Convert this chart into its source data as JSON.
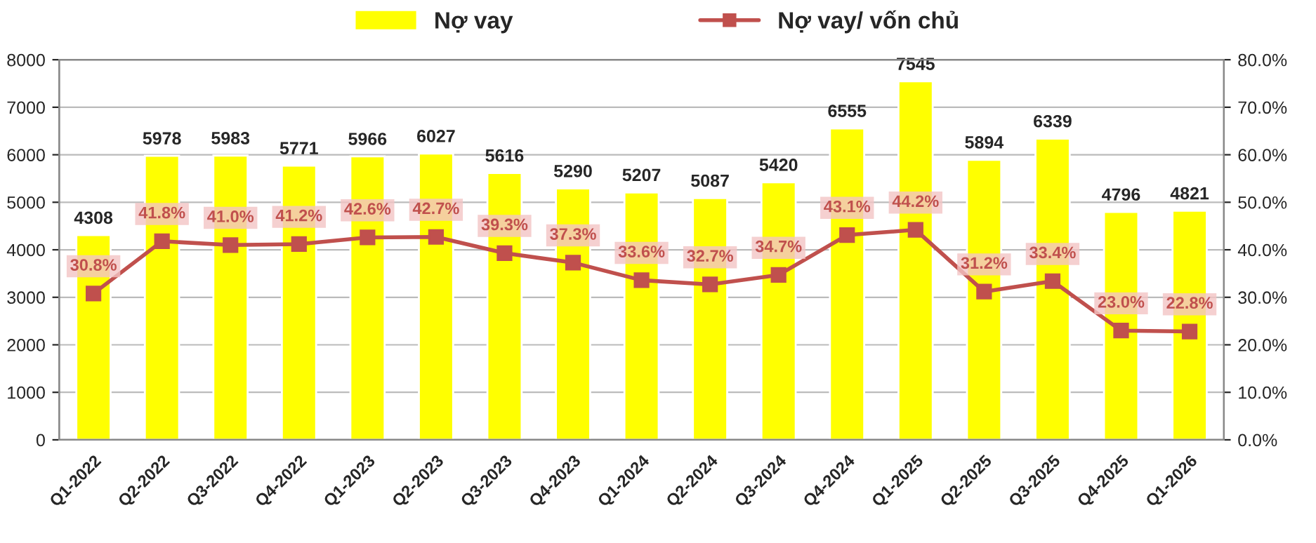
{
  "chart_data": {
    "type": "bar",
    "categories": [
      "Q1-2022",
      "Q2-2022",
      "Q3-2022",
      "Q4-2022",
      "Q1-2023",
      "Q2-2023",
      "Q3-2023",
      "Q4-2023",
      "Q1-2024",
      "Q2-2024",
      "Q3-2024",
      "Q4-2024",
      "Q1-2025",
      "Q2-2025",
      "Q3-2025",
      "Q4-2025",
      "Q1-2026"
    ],
    "series": [
      {
        "name": "Nợ vay",
        "color": "#ffff00",
        "values": [
          4308,
          5978,
          5983,
          5771,
          5966,
          6027,
          5616,
          5290,
          5207,
          5087,
          5420,
          6555,
          7545,
          5894,
          6339,
          4796,
          4821
        ],
        "value_labels": [
          "4308",
          "5978",
          "5983",
          "5771",
          "5966",
          "6027",
          "5616",
          "5290",
          "5207",
          "5087",
          "5420",
          "6555",
          "7545",
          "5894",
          "6339",
          "4796",
          "4821"
        ]
      },
      {
        "name": "Nợ vay/ vốn chủ",
        "type": "line",
        "axis": "y2",
        "color": "#c0504d",
        "marker": "square",
        "line_style": "solid",
        "values": [
          30.8,
          41.8,
          41.0,
          41.2,
          42.6,
          42.7,
          39.3,
          37.3,
          33.6,
          32.7,
          34.7,
          43.1,
          44.2,
          31.2,
          33.4,
          23.0,
          22.8
        ],
        "value_labels": [
          "30.8%",
          "41.8%",
          "41.0%",
          "41.2%",
          "42.6%",
          "42.7%",
          "39.3%",
          "37.3%",
          "33.6%",
          "32.7%",
          "34.7%",
          "43.1%",
          "44.2%",
          "31.2%",
          "33.4%",
          "23.0%",
          "22.8%"
        ]
      }
    ],
    "ylim": [
      0,
      8000
    ],
    "yticks": [
      0,
      1000,
      2000,
      3000,
      4000,
      5000,
      6000,
      7000,
      8000
    ],
    "y2lim": [
      0,
      80
    ],
    "y2ticks": [
      {
        "value": 0,
        "label": "0.0%"
      },
      {
        "value": 10,
        "label": "10.0%"
      },
      {
        "value": 20,
        "label": "20.0%"
      },
      {
        "value": 30,
        "label": "30.0%"
      },
      {
        "value": 40,
        "label": "40.0%"
      },
      {
        "value": 50,
        "label": "50.0%"
      },
      {
        "value": 60,
        "label": "60.0%"
      },
      {
        "value": 70,
        "label": "70.0%"
      },
      {
        "value": 80,
        "label": "80.0%"
      }
    ],
    "grid": "y",
    "legend": "top"
  }
}
